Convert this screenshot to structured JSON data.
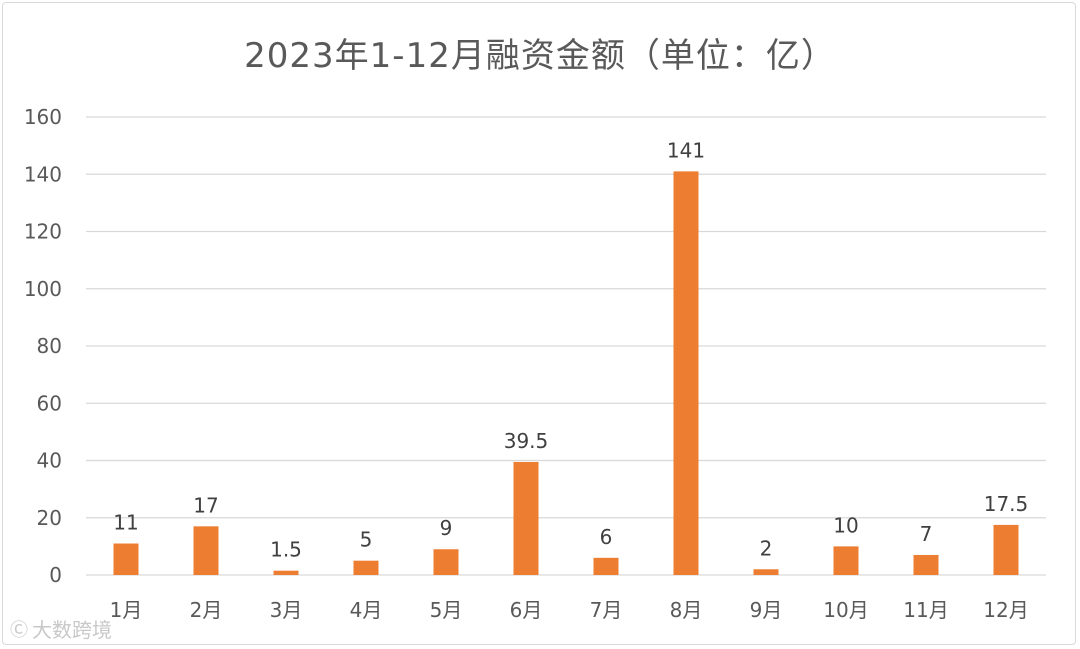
{
  "chart_data": {
    "type": "bar",
    "title": "2023年1-12月融资金额（单位：亿）",
    "categories": [
      "1月",
      "2月",
      "3月",
      "4月",
      "5月",
      "6月",
      "7月",
      "8月",
      "9月",
      "10月",
      "11月",
      "12月"
    ],
    "values": [
      11,
      17,
      1.5,
      5,
      9,
      39.5,
      6,
      141,
      2,
      10,
      7,
      17.5
    ],
    "data_labels": [
      "11",
      "17",
      "1.5",
      "5",
      "9",
      "39.5",
      "6",
      "141",
      "2",
      "10",
      "7",
      "17.5"
    ],
    "ylim": [
      0,
      160
    ],
    "yticks": [
      0,
      20,
      40,
      60,
      80,
      100,
      120,
      140,
      160
    ],
    "grid": true,
    "legend": "none",
    "bar_color": "#ED7D31",
    "grid_color": "#D9D9D9"
  },
  "watermark": {
    "icon": "logo-icon",
    "text": "大数跨境"
  }
}
